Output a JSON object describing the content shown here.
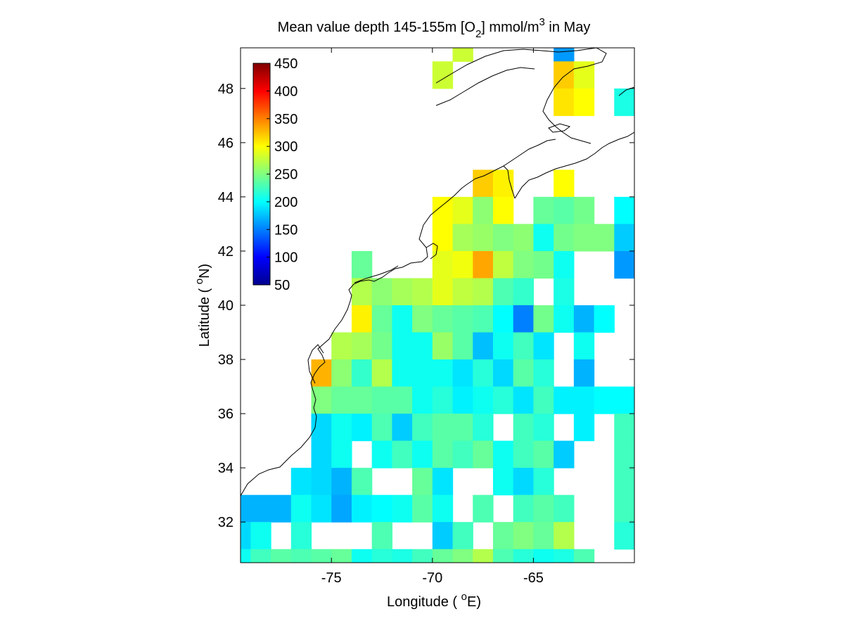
{
  "title": {
    "main": "Mean value depth 145-155m [O",
    "sub": "2",
    "unit": "] mmol/m",
    "sup": "3",
    "tail": " in May"
  },
  "axes": {
    "xlabel_pre": "Longitude ( ",
    "xlabel_deg": "o",
    "xlabel_post": "E)",
    "ylabel_pre": "Latitude ( ",
    "ylabel_deg": "o",
    "ylabel_post": "N)"
  },
  "chart_data": {
    "type": "heatmap",
    "xlim": [
      -79.5,
      -60.0
    ],
    "ylim": [
      30.5,
      49.5
    ],
    "x_ticks": [
      -75,
      -70,
      -65
    ],
    "x_tick_labels": [
      "-75",
      "-70",
      "-65"
    ],
    "y_ticks": [
      32,
      34,
      36,
      38,
      40,
      42,
      44,
      46,
      48
    ],
    "y_tick_labels": [
      "32",
      "34",
      "36",
      "38",
      "40",
      "42",
      "44",
      "46",
      "48"
    ],
    "colorbar": {
      "min": 50,
      "max": 450,
      "ticks": [
        50,
        100,
        150,
        200,
        250,
        300,
        350,
        400,
        450
      ],
      "tick_labels": [
        "50",
        "100",
        "150",
        "200",
        "250",
        "300",
        "350",
        "400",
        "450"
      ],
      "colormap": "jet",
      "placement": "inside-top-left"
    },
    "cell_size_degrees": 1.0,
    "cells": [
      [
        -68.5,
        49.5,
        280
      ],
      [
        -69.5,
        48.5,
        280
      ],
      [
        -63.5,
        49.5,
        160
      ],
      [
        -63.5,
        48.5,
        320
      ],
      [
        -62.5,
        48.5,
        290
      ],
      [
        -63.5,
        47.5,
        310
      ],
      [
        -62.5,
        47.5,
        300
      ],
      [
        -60.5,
        47.5,
        210
      ],
      [
        -67.5,
        44.5,
        320
      ],
      [
        -66.5,
        44.5,
        305
      ],
      [
        -63.5,
        44.5,
        300
      ],
      [
        -69.5,
        43.5,
        300
      ],
      [
        -68.5,
        43.5,
        290
      ],
      [
        -67.5,
        43.5,
        255
      ],
      [
        -66.5,
        43.5,
        300
      ],
      [
        -64.5,
        43.5,
        240
      ],
      [
        -63.5,
        43.5,
        235
      ],
      [
        -62.5,
        43.5,
        245
      ],
      [
        -60.5,
        43.5,
        200
      ],
      [
        -69.5,
        42.5,
        300
      ],
      [
        -68.5,
        42.5,
        265
      ],
      [
        -67.5,
        42.5,
        260
      ],
      [
        -66.5,
        42.5,
        250
      ],
      [
        -65.5,
        42.5,
        255
      ],
      [
        -64.5,
        42.5,
        205
      ],
      [
        -63.5,
        42.5,
        245
      ],
      [
        -62.5,
        42.5,
        250
      ],
      [
        -61.5,
        42.5,
        250
      ],
      [
        -60.5,
        42.5,
        180
      ],
      [
        -73.5,
        41.5,
        240
      ],
      [
        -69.5,
        41.5,
        290
      ],
      [
        -68.5,
        41.5,
        295
      ],
      [
        -67.5,
        41.5,
        335
      ],
      [
        -66.5,
        41.5,
        275
      ],
      [
        -65.5,
        41.5,
        250
      ],
      [
        -64.5,
        41.5,
        245
      ],
      [
        -63.5,
        41.5,
        205
      ],
      [
        -60.5,
        41.5,
        160
      ],
      [
        -73.5,
        40.5,
        270
      ],
      [
        -72.5,
        40.5,
        255
      ],
      [
        -71.5,
        40.5,
        265
      ],
      [
        -70.5,
        40.5,
        270
      ],
      [
        -69.5,
        40.5,
        290
      ],
      [
        -68.5,
        40.5,
        275
      ],
      [
        -67.5,
        40.5,
        270
      ],
      [
        -66.5,
        40.5,
        230
      ],
      [
        -65.5,
        40.5,
        220
      ],
      [
        -63.5,
        40.5,
        210
      ],
      [
        -73.5,
        39.5,
        305
      ],
      [
        -72.5,
        39.5,
        240
      ],
      [
        -71.5,
        39.5,
        205
      ],
      [
        -70.5,
        39.5,
        250
      ],
      [
        -69.5,
        39.5,
        240
      ],
      [
        -68.5,
        39.5,
        235
      ],
      [
        -67.5,
        39.5,
        230
      ],
      [
        -66.5,
        39.5,
        200
      ],
      [
        -65.5,
        39.5,
        150
      ],
      [
        -64.5,
        39.5,
        245
      ],
      [
        -63.5,
        39.5,
        205
      ],
      [
        -62.5,
        39.5,
        170
      ],
      [
        -61.5,
        39.5,
        200
      ],
      [
        -74.5,
        38.5,
        270
      ],
      [
        -73.5,
        38.5,
        265
      ],
      [
        -72.5,
        38.5,
        245
      ],
      [
        -71.5,
        38.5,
        205
      ],
      [
        -70.5,
        38.5,
        205
      ],
      [
        -69.5,
        38.5,
        260
      ],
      [
        -68.5,
        38.5,
        235
      ],
      [
        -67.5,
        38.5,
        175
      ],
      [
        -66.5,
        38.5,
        205
      ],
      [
        -65.5,
        38.5,
        225
      ],
      [
        -64.5,
        38.5,
        190
      ],
      [
        -62.5,
        38.5,
        205
      ],
      [
        -75.5,
        37.5,
        330
      ],
      [
        -74.5,
        37.5,
        255
      ],
      [
        -73.5,
        37.5,
        220
      ],
      [
        -72.5,
        37.5,
        270
      ],
      [
        -71.5,
        37.5,
        205
      ],
      [
        -70.5,
        37.5,
        205
      ],
      [
        -69.5,
        37.5,
        205
      ],
      [
        -68.5,
        37.5,
        190
      ],
      [
        -67.5,
        37.5,
        215
      ],
      [
        -66.5,
        37.5,
        185
      ],
      [
        -65.5,
        37.5,
        235
      ],
      [
        -64.5,
        37.5,
        215
      ],
      [
        -62.5,
        37.5,
        170
      ],
      [
        -75.5,
        36.5,
        250
      ],
      [
        -74.5,
        36.5,
        240
      ],
      [
        -73.5,
        36.5,
        240
      ],
      [
        -72.5,
        36.5,
        235
      ],
      [
        -71.5,
        36.5,
        235
      ],
      [
        -70.5,
        36.5,
        205
      ],
      [
        -69.5,
        36.5,
        215
      ],
      [
        -68.5,
        36.5,
        195
      ],
      [
        -67.5,
        36.5,
        205
      ],
      [
        -66.5,
        36.5,
        215
      ],
      [
        -65.5,
        36.5,
        190
      ],
      [
        -64.5,
        36.5,
        225
      ],
      [
        -63.5,
        36.5,
        195
      ],
      [
        -62.5,
        36.5,
        195
      ],
      [
        -61.5,
        36.5,
        200
      ],
      [
        -60.5,
        36.5,
        200
      ],
      [
        -75.5,
        35.5,
        185
      ],
      [
        -74.5,
        35.5,
        205
      ],
      [
        -73.5,
        35.5,
        195
      ],
      [
        -72.5,
        35.5,
        230
      ],
      [
        -71.5,
        35.5,
        180
      ],
      [
        -70.5,
        35.5,
        225
      ],
      [
        -69.5,
        35.5,
        235
      ],
      [
        -68.5,
        35.5,
        235
      ],
      [
        -67.5,
        35.5,
        215
      ],
      [
        -65.5,
        35.5,
        225
      ],
      [
        -64.5,
        35.5,
        215
      ],
      [
        -62.5,
        35.5,
        195
      ],
      [
        -60.5,
        35.5,
        225
      ],
      [
        -75.5,
        34.5,
        185
      ],
      [
        -74.5,
        34.5,
        205
      ],
      [
        -72.5,
        34.5,
        205
      ],
      [
        -71.5,
        34.5,
        225
      ],
      [
        -70.5,
        34.5,
        205
      ],
      [
        -69.5,
        34.5,
        235
      ],
      [
        -68.5,
        34.5,
        225
      ],
      [
        -67.5,
        34.5,
        240
      ],
      [
        -66.5,
        34.5,
        205
      ],
      [
        -65.5,
        34.5,
        225
      ],
      [
        -64.5,
        34.5,
        235
      ],
      [
        -63.5,
        34.5,
        180
      ],
      [
        -60.5,
        34.5,
        225
      ],
      [
        -76.5,
        33.5,
        190
      ],
      [
        -75.5,
        33.5,
        185
      ],
      [
        -74.5,
        33.5,
        170
      ],
      [
        -73.5,
        33.5,
        230
      ],
      [
        -70.5,
        33.5,
        240
      ],
      [
        -69.5,
        33.5,
        190
      ],
      [
        -66.5,
        33.5,
        205
      ],
      [
        -65.5,
        33.5,
        185
      ],
      [
        -64.5,
        33.5,
        215
      ],
      [
        -60.5,
        33.5,
        225
      ],
      [
        -79.5,
        32.5,
        170
      ],
      [
        -78.5,
        32.5,
        170
      ],
      [
        -77.5,
        32.5,
        170
      ],
      [
        -76.5,
        32.5,
        205
      ],
      [
        -75.5,
        32.5,
        190
      ],
      [
        -74.5,
        32.5,
        165
      ],
      [
        -73.5,
        32.5,
        195
      ],
      [
        -72.5,
        32.5,
        200
      ],
      [
        -71.5,
        32.5,
        205
      ],
      [
        -70.5,
        32.5,
        235
      ],
      [
        -69.5,
        32.5,
        205
      ],
      [
        -67.5,
        32.5,
        230
      ],
      [
        -65.5,
        32.5,
        225
      ],
      [
        -64.5,
        32.5,
        235
      ],
      [
        -63.5,
        32.5,
        225
      ],
      [
        -60.5,
        32.5,
        225
      ],
      [
        -79.5,
        31.5,
        185
      ],
      [
        -78.5,
        31.5,
        205
      ],
      [
        -76.5,
        31.5,
        215
      ],
      [
        -72.5,
        31.5,
        230
      ],
      [
        -69.5,
        31.5,
        180
      ],
      [
        -68.5,
        31.5,
        225
      ],
      [
        -66.5,
        31.5,
        240
      ],
      [
        -65.5,
        31.5,
        250
      ],
      [
        -64.5,
        31.5,
        240
      ],
      [
        -63.5,
        31.5,
        270
      ],
      [
        -60.5,
        31.5,
        215
      ],
      [
        -79.5,
        30.5,
        205
      ],
      [
        -78.5,
        30.5,
        225
      ],
      [
        -77.5,
        30.5,
        235
      ],
      [
        -76.5,
        30.5,
        230
      ],
      [
        -75.5,
        30.5,
        235
      ],
      [
        -74.5,
        30.5,
        240
      ],
      [
        -73.5,
        30.5,
        205
      ],
      [
        -72.5,
        30.5,
        215
      ],
      [
        -71.5,
        30.5,
        210
      ],
      [
        -70.5,
        30.5,
        225
      ],
      [
        -69.5,
        30.5,
        240
      ],
      [
        -68.5,
        30.5,
        250
      ],
      [
        -67.5,
        30.5,
        270
      ],
      [
        -66.5,
        30.5,
        230
      ],
      [
        -65.5,
        30.5,
        215
      ],
      [
        -64.5,
        30.5,
        205
      ],
      [
        -63.5,
        30.5,
        210
      ],
      [
        -62.5,
        30.5,
        230
      ]
    ]
  }
}
